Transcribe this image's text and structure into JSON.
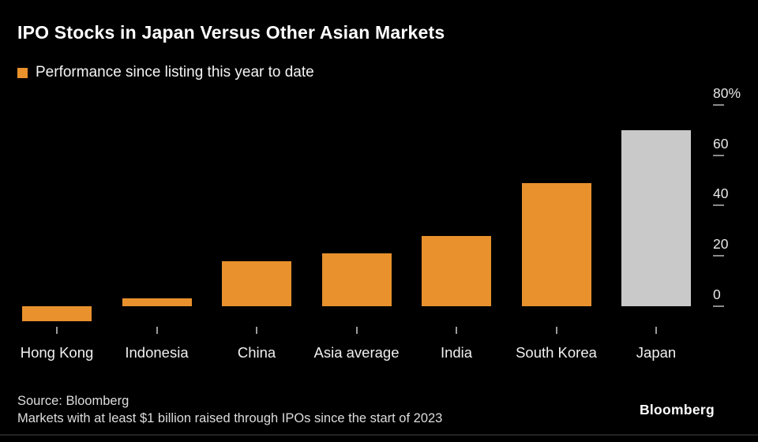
{
  "title": "IPO Stocks in Japan Versus Other Asian Markets",
  "legend": {
    "label": "Performance since listing this year to date",
    "swatch_color": "#E8912D"
  },
  "chart_data": {
    "type": "bar",
    "categories": [
      "Hong Kong",
      "Indonesia",
      "China",
      "Asia average",
      "India",
      "South Korea",
      "Japan"
    ],
    "values": [
      -6,
      3,
      18,
      21,
      28,
      49,
      70
    ],
    "bar_colors": [
      "#E8912D",
      "#E8912D",
      "#E8912D",
      "#E8912D",
      "#E8912D",
      "#E8912D",
      "#C9C9C9"
    ],
    "yticks": [
      {
        "value": 80,
        "label": "80%"
      },
      {
        "value": 60,
        "label": "60"
      },
      {
        "value": 40,
        "label": "40"
      },
      {
        "value": 20,
        "label": "20"
      },
      {
        "value": 0,
        "label": "0"
      }
    ],
    "ylim": [
      -10,
      80
    ],
    "xlabel": "",
    "ylabel": "",
    "grid": false,
    "legend_position": "top-left",
    "axis_side": "right"
  },
  "footer": {
    "source_line1": "Source: Bloomberg",
    "source_line2": "Markets with at least $1 billion raised through IPOs since the start of 2023",
    "logo": "Bloomberg"
  }
}
